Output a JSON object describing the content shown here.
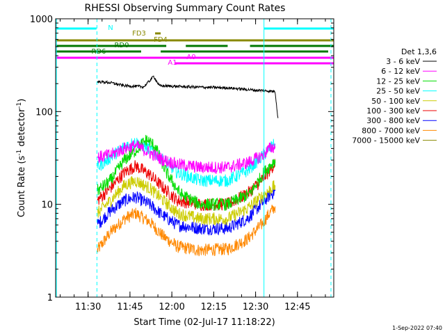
{
  "chart_data": {
    "type": "line",
    "title": "RHESSI Observing Summary Count Rates",
    "xlabel": "Start Time (02-Jul-17 11:18:22)",
    "ylabel": "Count Rate (s⁻¹ detector⁻¹)",
    "ylabel_parts": {
      "main": "Count Rate (s",
      "sup1": "-1",
      "mid": " detector",
      "sup2": "-1",
      "end": ")"
    },
    "timestamp": "1-Sep-2022 07:40",
    "y_scale": "log",
    "ylim": [
      1,
      1000
    ],
    "xlim": [
      "11:18:22",
      "12:58:00"
    ],
    "x_ticks": [
      "11:30",
      "11:45",
      "12:00",
      "12:15",
      "12:30",
      "12:45"
    ],
    "y_ticks": [
      "1",
      "10",
      "100",
      "1000"
    ],
    "legend": {
      "title": "Det 1,3,6",
      "placement": "right",
      "entries": [
        {
          "label": "3 - 6 keV",
          "color": "#000000"
        },
        {
          "label": "6 - 12 keV",
          "color": "#ff00ff"
        },
        {
          "label": "12 - 25 keV",
          "color": "#00dd00"
        },
        {
          "label": "25 - 50 keV",
          "color": "#00ffff"
        },
        {
          "label": "50 - 100 keV",
          "color": "#cccc00"
        },
        {
          "label": "100 - 300 keV",
          "color": "#ee0000"
        },
        {
          "label": "300 - 800 keV",
          "color": "#0000ff"
        },
        {
          "label": "800 - 7000 keV",
          "color": "#ff8800"
        },
        {
          "label": "7000 - 15000 keV",
          "color": "#888800"
        }
      ]
    },
    "series": [
      {
        "name": "3 - 6 keV",
        "color": "#000000",
        "points": [
          [
            "11:33:20",
            210
          ],
          [
            "11:38:00",
            205
          ],
          [
            "11:43:00",
            190
          ],
          [
            "11:50:00",
            185
          ],
          [
            "11:53:30",
            240
          ],
          [
            "11:55:30",
            190
          ],
          [
            "12:05:00",
            185
          ],
          [
            "12:20:00",
            180
          ],
          [
            "12:30:00",
            170
          ],
          [
            "12:37:00",
            165
          ],
          [
            "12:38:00",
            85
          ]
        ]
      },
      {
        "name": "6 - 12 keV",
        "color": "#ff00ff",
        "points": [
          [
            "11:33:20",
            32
          ],
          [
            "11:38:00",
            34
          ],
          [
            "11:43:00",
            40
          ],
          [
            "11:47:00",
            43
          ],
          [
            "11:52:00",
            36
          ],
          [
            "11:57:00",
            30
          ],
          [
            "12:02:00",
            27
          ],
          [
            "12:10:00",
            25
          ],
          [
            "12:20:00",
            25
          ],
          [
            "12:27:00",
            28
          ],
          [
            "12:32:00",
            33
          ],
          [
            "12:35:00",
            40
          ],
          [
            "12:37:00",
            42
          ]
        ]
      },
      {
        "name": "12 - 25 keV",
        "color": "#00dd00",
        "points": [
          [
            "11:33:20",
            14
          ],
          [
            "11:38:00",
            18
          ],
          [
            "11:43:00",
            30
          ],
          [
            "11:47:00",
            38
          ],
          [
            "11:51:00",
            50
          ],
          [
            "11:54:00",
            42
          ],
          [
            "11:58:00",
            22
          ],
          [
            "12:03:00",
            13
          ],
          [
            "12:10:00",
            10
          ],
          [
            "12:20:00",
            10
          ],
          [
            "12:28:00",
            13
          ],
          [
            "12:33:00",
            22
          ],
          [
            "12:37:00",
            30
          ]
        ]
      },
      {
        "name": "25 - 50 keV",
        "color": "#00ffff",
        "points": [
          [
            "11:33:20",
            25
          ],
          [
            "11:38:00",
            32
          ],
          [
            "11:43:00",
            42
          ],
          [
            "11:47:00",
            47
          ],
          [
            "11:52:00",
            40
          ],
          [
            "11:57:00",
            30
          ],
          [
            "12:02:00",
            22
          ],
          [
            "12:10:00",
            18
          ],
          [
            "12:20:00",
            18
          ],
          [
            "12:27:00",
            23
          ],
          [
            "12:32:00",
            32
          ],
          [
            "12:35:00",
            40
          ],
          [
            "12:37:00",
            45
          ]
        ]
      },
      {
        "name": "50 - 100 keV",
        "color": "#cccc00",
        "points": [
          [
            "11:33:20",
            8
          ],
          [
            "11:38:00",
            11
          ],
          [
            "11:43:00",
            16
          ],
          [
            "11:47:00",
            18
          ],
          [
            "11:52:00",
            15
          ],
          [
            "11:57:00",
            11
          ],
          [
            "12:02:00",
            8
          ],
          [
            "12:10:00",
            7
          ],
          [
            "12:20:00",
            7
          ],
          [
            "12:27:00",
            9
          ],
          [
            "12:32:00",
            12
          ],
          [
            "12:37:00",
            16
          ]
        ]
      },
      {
        "name": "100 - 300 keV",
        "color": "#ee0000",
        "points": [
          [
            "11:33:20",
            11
          ],
          [
            "11:38:00",
            15
          ],
          [
            "11:43:00",
            22
          ],
          [
            "11:47:00",
            26
          ],
          [
            "11:52:00",
            21
          ],
          [
            "11:57:00",
            15
          ],
          [
            "12:02:00",
            11
          ],
          [
            "12:10:00",
            10
          ],
          [
            "12:20:00",
            10
          ],
          [
            "12:27:00",
            13
          ],
          [
            "12:32:00",
            18
          ],
          [
            "12:35:00",
            23
          ],
          [
            "12:37:00",
            28
          ]
        ]
      },
      {
        "name": "300 - 800 keV",
        "color": "#0000ff",
        "points": [
          [
            "11:33:20",
            6
          ],
          [
            "11:38:00",
            8.5
          ],
          [
            "11:43:00",
            11
          ],
          [
            "11:47:00",
            12
          ],
          [
            "11:52:00",
            10
          ],
          [
            "11:57:00",
            7.5
          ],
          [
            "12:02:00",
            6
          ],
          [
            "12:10:00",
            5.5
          ],
          [
            "12:20:00",
            5.5
          ],
          [
            "12:27:00",
            7
          ],
          [
            "12:32:00",
            10
          ],
          [
            "12:35:00",
            12.5
          ],
          [
            "12:37:00",
            14
          ]
        ]
      },
      {
        "name": "800 - 7000 keV",
        "color": "#ff8800",
        "points": [
          [
            "11:33:20",
            3.2
          ],
          [
            "11:38:00",
            5
          ],
          [
            "11:43:00",
            7
          ],
          [
            "11:47:00",
            8
          ],
          [
            "11:52:00",
            6.5
          ],
          [
            "11:57:00",
            4.5
          ],
          [
            "12:02:00",
            3.5
          ],
          [
            "12:10:00",
            3.2
          ],
          [
            "12:20:00",
            3.3
          ],
          [
            "12:27:00",
            4.2
          ],
          [
            "12:32:00",
            6
          ],
          [
            "12:35:00",
            8
          ],
          [
            "12:37:00",
            9.5
          ]
        ]
      }
    ],
    "flag_bars": [
      {
        "label": "N",
        "color": "#00ffff",
        "segments": [
          [
            "11:18:22",
            "11:33:00"
          ],
          [
            "12:33:00",
            "12:58:00"
          ]
        ]
      },
      {
        "label": "FD3",
        "color": "#888800",
        "segments": [
          [
            "11:54:00",
            "11:56:00"
          ]
        ]
      },
      {
        "label": "FD4",
        "color": "#888800",
        "segments": [
          [
            "11:18:22",
            "12:58:00"
          ]
        ]
      },
      {
        "label": "RD0",
        "color": "#007700",
        "segments": [
          [
            "11:18:22",
            "11:58:00"
          ],
          [
            "12:05:00",
            "12:20:00"
          ],
          [
            "12:28:00",
            "12:58:00"
          ]
        ]
      },
      {
        "label": "RD6",
        "color": "#007700",
        "segments": [
          [
            "11:18:22",
            "11:49:00"
          ],
          [
            "11:56:00",
            "12:56:00"
          ]
        ]
      },
      {
        "label": "A0",
        "color": "#ff00ff",
        "segments": [
          [
            "11:18:22",
            "12:58:00"
          ]
        ]
      },
      {
        "label": "A1",
        "color": "#ff00ff",
        "segments": [
          [
            "12:01:00",
            "12:58:00"
          ]
        ]
      }
    ],
    "vertical_lines": [
      {
        "time": "11:18:40",
        "color": "#00ffff",
        "style": "solid"
      },
      {
        "time": "11:33:10",
        "color": "#00ffff",
        "style": "dashed"
      },
      {
        "time": "12:33:00",
        "color": "#00ffff",
        "style": "solid"
      },
      {
        "time": "12:57:00",
        "color": "#00ffff",
        "style": "dashed"
      }
    ]
  }
}
